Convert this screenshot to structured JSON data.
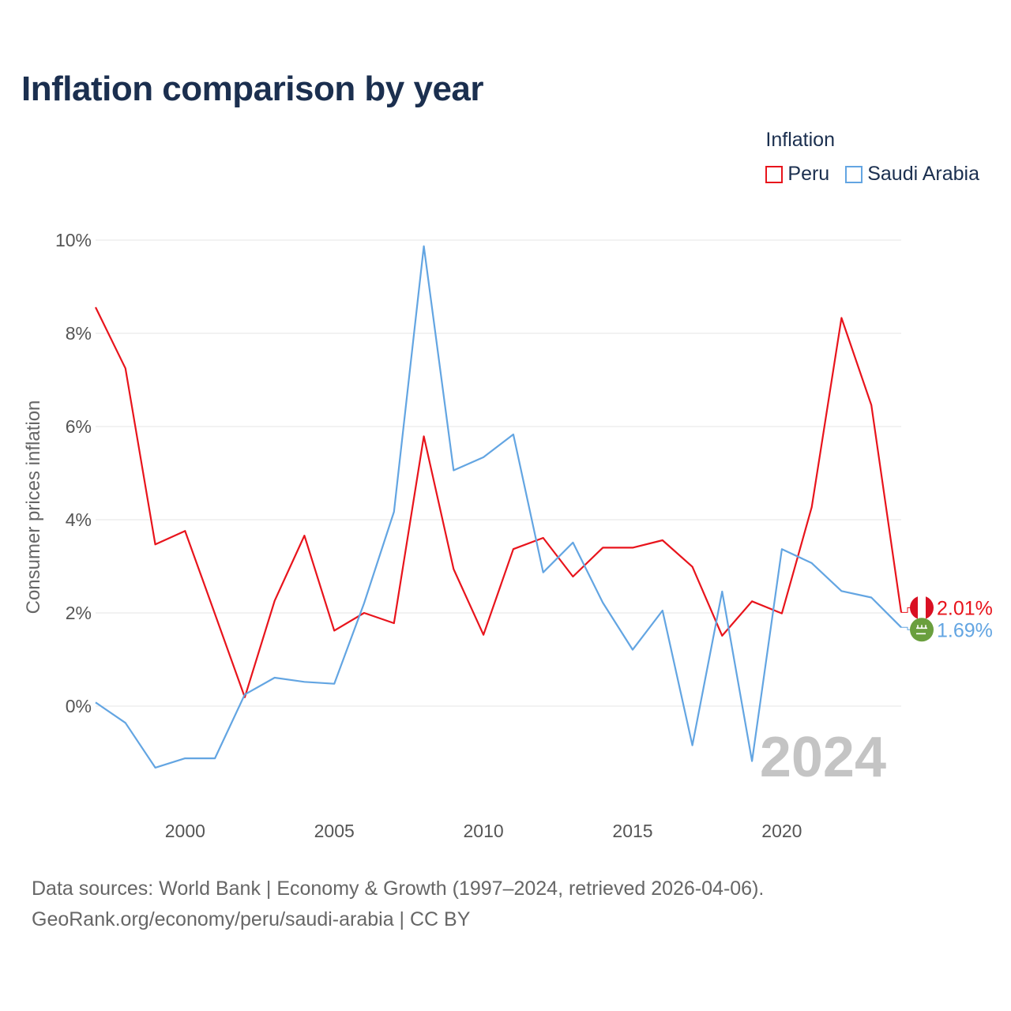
{
  "title": "Inflation comparison by year",
  "legend": {
    "title": "Inflation",
    "items": [
      {
        "label": "Peru",
        "color": "#e8141c"
      },
      {
        "label": "Saudi Arabia",
        "color": "#63a5e2"
      }
    ]
  },
  "chart_data": {
    "type": "line",
    "title": "Inflation comparison by year",
    "xlabel": "",
    "ylabel": "Consumer prices inflation",
    "xlim": [
      1997,
      2024
    ],
    "ylim": [
      -2,
      10
    ],
    "x_ticks": [
      2000,
      2005,
      2010,
      2015,
      2020
    ],
    "y_ticks": [
      0,
      2,
      4,
      6,
      8,
      10
    ],
    "y_tick_labels": [
      "0%",
      "2%",
      "4%",
      "6%",
      "8%",
      "10%"
    ],
    "grid": true,
    "watermark_year": "2024",
    "x": [
      1997,
      1998,
      1999,
      2000,
      2001,
      2002,
      2003,
      2004,
      2005,
      2006,
      2007,
      2008,
      2009,
      2010,
      2011,
      2012,
      2013,
      2014,
      2015,
      2016,
      2017,
      2018,
      2019,
      2020,
      2021,
      2022,
      2023,
      2024
    ],
    "series": [
      {
        "name": "Peru",
        "color": "#e8141c",
        "end_label": "2.01%",
        "values": [
          8.56,
          7.25,
          3.47,
          3.76,
          1.98,
          0.19,
          2.26,
          3.66,
          1.62,
          2.0,
          1.78,
          5.79,
          2.94,
          1.53,
          3.37,
          3.61,
          2.78,
          3.4,
          3.4,
          3.56,
          2.99,
          1.51,
          2.25,
          1.99,
          4.27,
          8.33,
          6.46,
          2.01
        ]
      },
      {
        "name": "Saudi Arabia",
        "color": "#63a5e2",
        "end_label": "1.69%",
        "values": [
          0.08,
          -0.36,
          -1.32,
          -1.12,
          -1.12,
          0.25,
          0.61,
          0.52,
          0.48,
          2.21,
          4.17,
          9.87,
          5.06,
          5.34,
          5.83,
          2.87,
          3.51,
          2.22,
          1.21,
          2.05,
          -0.84,
          2.46,
          -1.18,
          3.37,
          3.07,
          2.47,
          2.33,
          1.69
        ]
      }
    ]
  },
  "footer": {
    "line1": "Data sources: World Bank | Economy & Growth (1997–2024, retrieved 2026-04-06).",
    "line2": "GeoRank.org/economy/peru/saudi-arabia | CC BY"
  }
}
